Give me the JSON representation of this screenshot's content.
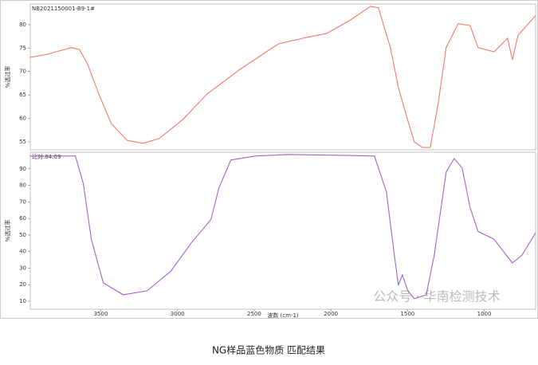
{
  "chart_data": [
    {
      "type": "line",
      "header": "NB2021150001-B9-1#",
      "ylabel": "%透过率",
      "xlim": [
        3960,
        665
      ],
      "ylim": [
        84.4,
        53.3
      ],
      "yticks": [
        55,
        60,
        65,
        70,
        75,
        80
      ],
      "series": [
        {
          "name": "NB2021150001-B9-1#",
          "color": "#f07b6c",
          "x": [
            3963,
            3848,
            3692,
            3640,
            3588,
            3510,
            3432,
            3328,
            3224,
            3120,
            2964,
            2808,
            2600,
            2366,
            2340,
            2184,
            2028,
            1872,
            1742,
            1690,
            1612,
            1560,
            1508,
            1456,
            1404,
            1352,
            1300,
            1248,
            1170,
            1092,
            1040,
            936,
            848,
            816,
            780,
            666
          ],
          "values": [
            73.0,
            73.7,
            75.1,
            74.7,
            71.7,
            64.9,
            58.9,
            55.3,
            54.7,
            55.7,
            59.8,
            65.2,
            70.3,
            75.4,
            75.9,
            77.1,
            78.1,
            81.0,
            83.9,
            83.6,
            75.1,
            66.6,
            60.6,
            55.0,
            53.8,
            53.8,
            63.2,
            75.1,
            80.2,
            79.8,
            75.1,
            74.2,
            77.1,
            72.5,
            77.7,
            81.9
          ]
        }
      ]
    },
    {
      "type": "line",
      "header": "比对:84.09",
      "ylabel": "%透过率",
      "xlabel": "波数 (cm-1)",
      "xlim": [
        3960,
        665
      ],
      "xticks": [
        3500,
        3000,
        2500,
        2000,
        1500,
        1000
      ],
      "ylim": [
        100,
        5.2
      ],
      "yticks": [
        90,
        80,
        70,
        60,
        50,
        40,
        30,
        20,
        10
      ],
      "series": [
        {
          "name": "比对:84.09",
          "color": "#a461c9",
          "x": [
            3963,
            3666,
            3614,
            3562,
            3484,
            3354,
            3198,
            3042,
            2912,
            2782,
            2730,
            2652,
            2496,
            2288,
            1924,
            1716,
            1638,
            1586,
            1560,
            1534,
            1498,
            1456,
            1378,
            1326,
            1248,
            1196,
            1144,
            1092,
            1040,
            936,
            816,
            754,
            666
          ],
          "values": [
            97.7,
            97.7,
            80.9,
            47.4,
            21.1,
            13.9,
            16.3,
            28.3,
            45.0,
            59.4,
            78.5,
            95.3,
            97.7,
            98.6,
            98.1,
            97.7,
            76.1,
            37.8,
            19.7,
            25.9,
            16.3,
            11.5,
            13.9,
            37.8,
            88.1,
            96.2,
            90.5,
            66.6,
            52.2,
            47.4,
            33.1,
            37.8,
            51.2
          ]
        }
      ]
    }
  ],
  "watermark": "公众号 · 华南检测技术",
  "caption": "NG样品蓝色物质 匹配结果"
}
